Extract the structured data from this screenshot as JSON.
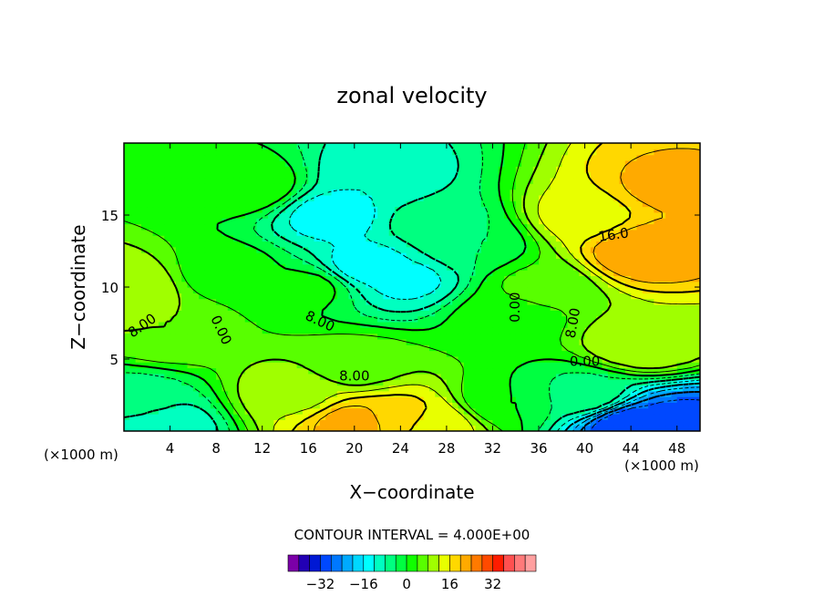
{
  "chart_data": {
    "type": "heatmap",
    "title": "zonal velocity",
    "xlabel": "X−coordinate",
    "ylabel": "Z−coordinate",
    "x_unit": "(×1000 m)",
    "y_unit": "(×1000 m)",
    "xlim": [
      0,
      50
    ],
    "ylim": [
      0,
      20
    ],
    "x_ticks": [
      4,
      8,
      12,
      16,
      20,
      24,
      28,
      32,
      36,
      40,
      44,
      48
    ],
    "y_ticks": [
      5,
      10,
      15
    ],
    "contour_interval_text": "CONTOUR INTERVAL = 4.000E+00",
    "contour_labels": [
      {
        "text": "16.0",
        "x": 42.5,
        "y": 13.6,
        "rotate": -8
      },
      {
        "text": "8.00",
        "x": 1.6,
        "y": 7.3,
        "rotate": -35
      },
      {
        "text": "0.00",
        "x": 8.4,
        "y": 7.0,
        "rotate": 65
      },
      {
        "text": "8.00",
        "x": 17.0,
        "y": 7.6,
        "rotate": 25
      },
      {
        "text": "0.00",
        "x": 34.0,
        "y": 8.6,
        "rotate": -90
      },
      {
        "text": "8.00",
        "x": 39.0,
        "y": 7.5,
        "rotate": -80
      },
      {
        "text": "0.00",
        "x": 40.0,
        "y": 4.8,
        "rotate": 0
      },
      {
        "text": "8.00",
        "x": 20.0,
        "y": 3.8,
        "rotate": 0
      }
    ],
    "colorbar": {
      "colors": [
        "#7b00a8",
        "#2200b4",
        "#0018d4",
        "#0048ff",
        "#0078ff",
        "#00aaff",
        "#00d8ff",
        "#00ffff",
        "#00ffc0",
        "#00ff80",
        "#00ff40",
        "#10ff00",
        "#58ff00",
        "#a0ff00",
        "#e8ff00",
        "#ffd800",
        "#ffaa00",
        "#ff7a00",
        "#ff4a00",
        "#ff1c00",
        "#ff5050",
        "#ff7a7a",
        "#ffa0a0"
      ],
      "tick_labels": [
        {
          "text": "−32",
          "value": -32
        },
        {
          "text": "−16",
          "value": -16
        },
        {
          "text": "0",
          "value": 0
        },
        {
          "text": "16",
          "value": 16
        },
        {
          "text": "32",
          "value": 32
        }
      ],
      "min": -44,
      "max": 48,
      "step": 4
    },
    "field_features": [
      {
        "x": 0.0,
        "y": 10.0,
        "u": 12
      },
      {
        "x": 4.0,
        "y": 7.0,
        "u": 8
      },
      {
        "x": 9.0,
        "y": 11.0,
        "u": 2
      },
      {
        "x": 11.0,
        "y": 17.0,
        "u": 3
      },
      {
        "x": 16.0,
        "y": 10.0,
        "u": 1
      },
      {
        "x": 18.0,
        "y": 15.0,
        "u": -14
      },
      {
        "x": 21.0,
        "y": 11.5,
        "u": -14
      },
      {
        "x": 24.5,
        "y": 10.5,
        "u": -13
      },
      {
        "x": 22.0,
        "y": 17.5,
        "u": -12
      },
      {
        "x": 27.0,
        "y": 14.5,
        "u": -6
      },
      {
        "x": 30.0,
        "y": 13.0,
        "u": -4
      },
      {
        "x": 33.0,
        "y": 8.0,
        "u": 2
      },
      {
        "x": 36.0,
        "y": 10.0,
        "u": 5
      },
      {
        "x": 40.0,
        "y": 15.0,
        "u": 14
      },
      {
        "x": 45.0,
        "y": 12.5,
        "u": 24
      },
      {
        "x": 47.0,
        "y": 17.0,
        "u": 21
      },
      {
        "x": 45.0,
        "y": 6.0,
        "u": 12
      },
      {
        "x": 20.0,
        "y": 0.6,
        "u": 22
      },
      {
        "x": 24.0,
        "y": 1.0,
        "u": 18
      },
      {
        "x": 27.0,
        "y": 0.5,
        "u": 14
      },
      {
        "x": 15.0,
        "y": 2.5,
        "u": 11
      },
      {
        "x": 3.0,
        "y": 0.3,
        "u": -12
      },
      {
        "x": 1.0,
        "y": 2.0,
        "u": -6
      },
      {
        "x": 44.0,
        "y": 0.4,
        "u": -32
      },
      {
        "x": 48.0,
        "y": 0.6,
        "u": -30
      },
      {
        "x": 40.0,
        "y": 2.5,
        "u": -5
      },
      {
        "x": 33.0,
        "y": 2.0,
        "u": 0
      },
      {
        "x": 20.0,
        "y": 4.5,
        "u": 6
      }
    ]
  }
}
